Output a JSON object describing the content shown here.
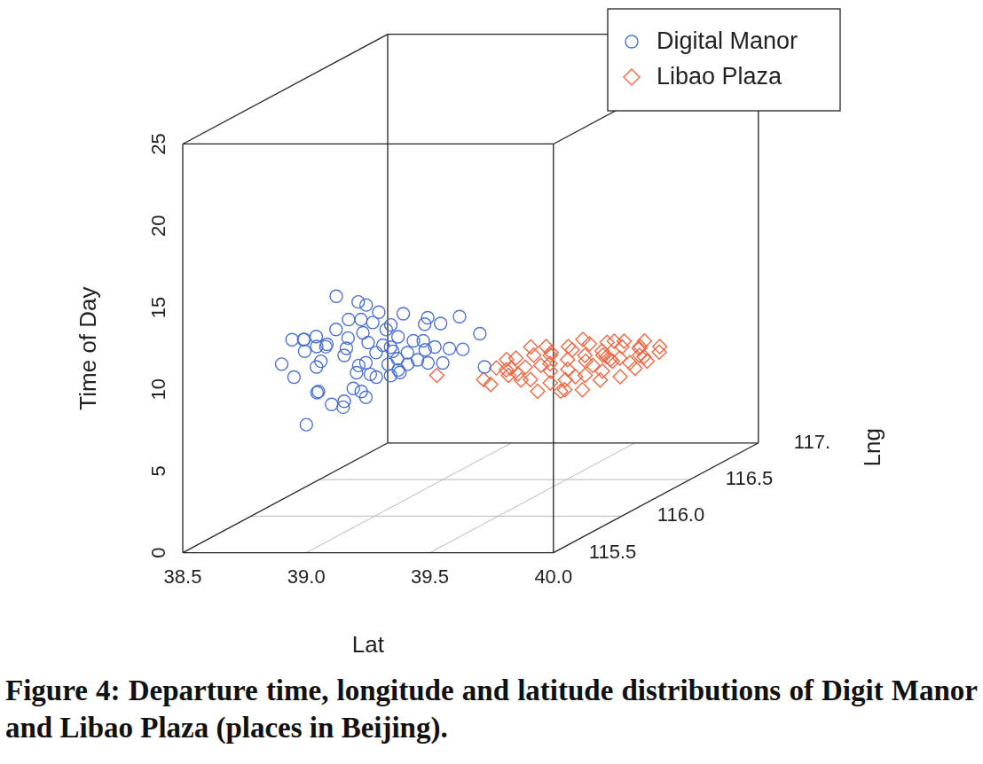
{
  "chart_data": {
    "type": "scatter3d",
    "caption": "Figure 4: Departure time, longitude and latitude distributions of Digit Manor and Libao Plaza (places in Beijing).",
    "x_label": "Lat",
    "y_label": "Lng",
    "z_label": "Time of Day",
    "xlim": [
      38.5,
      40.0
    ],
    "xticks": [
      38.5,
      {
        "value": 39,
        "label": "39.0"
      },
      39.5,
      {
        "value": 40,
        "label": "40.0"
      }
    ],
    "ylim": [
      115.5,
      117
    ],
    "yticks": [
      115.5,
      {
        "value": 116,
        "label": "116.0"
      },
      116.5,
      {
        "value": 117,
        "label": "117."
      }
    ],
    "zlim": [
      0,
      25
    ],
    "zticks": [
      0,
      5,
      10,
      15,
      20,
      25
    ],
    "grid": true,
    "legend": "top-right",
    "series": [
      {
        "name": "Digital Manor",
        "color": "#4a72d6",
        "marker": "circle",
        "x": [
          38.69,
          38.71,
          38.77,
          38.79,
          38.75,
          38.74,
          38.81,
          38.82,
          38.85,
          38.8,
          38.79,
          38.87,
          38.9,
          38.88,
          38.91,
          38.91,
          38.93,
          38.95,
          38.97,
          38.96,
          38.98,
          38.99,
          39.02,
          38.95,
          38.91,
          39.0,
          39.01,
          39.0,
          39.03,
          39.05,
          39.04,
          39.05,
          39.02,
          39.07,
          39.08,
          39.1,
          39.11,
          39.12,
          39.06,
          39.04,
          39.14,
          39.16,
          39.15,
          39.17,
          39.19,
          39.2,
          39.14,
          39.12,
          39.21,
          39.23,
          39.24,
          39.26,
          39.27,
          39.28,
          39.3,
          39.31,
          39.32,
          39.26,
          39.38,
          39.39,
          39.41,
          39.47,
          39.5,
          38.86,
          38.84,
          38.83,
          38.98,
          39.11,
          39.18
        ],
        "y": [
          115.88,
          115.92,
          115.9,
          115.86,
          115.94,
          115.88,
          115.92,
          115.9,
          115.86,
          115.94,
          115.88,
          115.92,
          115.9,
          115.86,
          115.94,
          115.88,
          115.92,
          115.9,
          115.86,
          115.94,
          115.88,
          115.92,
          115.9,
          115.86,
          115.94,
          115.88,
          115.92,
          115.9,
          115.86,
          115.94,
          115.88,
          115.92,
          115.9,
          115.86,
          115.94,
          115.88,
          115.92,
          115.9,
          115.86,
          115.94,
          115.88,
          115.92,
          115.9,
          115.86,
          115.94,
          115.88,
          115.92,
          115.9,
          115.86,
          115.94,
          115.88,
          115.92,
          115.9,
          115.86,
          115.94,
          115.88,
          115.92,
          115.9,
          115.86,
          115.94,
          115.88,
          115.92,
          115.9,
          115.86,
          115.94,
          115.88,
          115.92,
          115.9,
          115.86
        ],
        "z": [
          9.83,
          11.15,
          11.26,
          11.42,
          10.36,
          9.04,
          10.73,
          9.57,
          8.25,
          7.82,
          6.13,
          7.19,
          13.9,
          10.99,
          10.1,
          11.95,
          10.62,
          12.47,
          11.52,
          9.04,
          8.35,
          7.98,
          7.72,
          7.29,
          7.29,
          13.64,
          13.27,
          12.47,
          11.84,
          12.74,
          11.15,
          10.36,
          9.83,
          12.47,
          11.68,
          10.99,
          12.05,
          10.78,
          9.3,
          8.77,
          10.62,
          12.74,
          11.42,
          10.25,
          10.99,
          9.83,
          9.3,
          9.04,
          10.62,
          10.99,
          10.1,
          9.73,
          12.58,
          12.37,
          12.05,
          10.88,
          9.73,
          10.62,
          10.88,
          10.47,
          12.74,
          11.52,
          9.57,
          10.1,
          10.78,
          11.52,
          9.57,
          9.73,
          9.41
        ]
      },
      {
        "name": "Libao Plaza",
        "color": "#f26640",
        "marker": "diamond",
        "x": [
          38.92,
          39.12,
          39.15,
          39.16,
          39.18,
          39.21,
          39.23,
          39.25,
          39.27,
          39.29,
          39.3,
          39.31,
          39.33,
          39.35,
          39.36,
          39.38,
          39.39,
          39.41,
          39.4,
          39.43,
          39.45,
          39.46,
          39.47,
          39.49,
          39.5,
          39.52,
          39.53,
          39.54,
          39.56,
          39.57,
          39.59,
          39.6,
          39.62,
          39.63,
          39.64,
          39.66,
          39.68,
          39.69,
          39.7,
          39.72,
          39.74,
          39.75,
          39.76,
          39.78,
          39.8,
          39.82,
          39.52,
          39.57,
          39.46,
          39.34,
          39.24,
          39.62,
          39.5,
          39.66,
          39.7,
          39.44,
          39.39,
          39.19,
          39.3,
          39.6,
          39.76
        ],
        "y": [
          116.6,
          116.58,
          116.62,
          116.56,
          116.64,
          116.6,
          116.58,
          116.62,
          116.56,
          116.64,
          116.6,
          116.58,
          116.62,
          116.56,
          116.64,
          116.6,
          116.58,
          116.62,
          116.56,
          116.64,
          116.6,
          116.58,
          116.62,
          116.56,
          116.64,
          116.6,
          116.58,
          116.62,
          116.56,
          116.64,
          116.6,
          116.58,
          116.62,
          116.56,
          116.64,
          116.6,
          116.58,
          116.62,
          116.56,
          116.64,
          116.6,
          116.58,
          116.62,
          116.56,
          116.64,
          116.6,
          116.58,
          116.62,
          116.56,
          116.64,
          116.6,
          116.58,
          116.62,
          116.56,
          116.64,
          116.6,
          116.58,
          116.62,
          116.56,
          116.64,
          116.6
        ],
        "z": [
          5.92,
          5.76,
          6.29,
          5.55,
          6.71,
          5.92,
          6.45,
          5.55,
          6.18,
          6.98,
          7.66,
          5.76,
          6.45,
          5.13,
          7.14,
          6.18,
          5.55,
          4.86,
          6.82,
          7.51,
          6.29,
          6.98,
          5.76,
          7.66,
          6.61,
          5.92,
          7.24,
          6.45,
          8.03,
          6.98,
          6.18,
          7.51,
          6.71,
          7.24,
          5.66,
          6.98,
          7.77,
          6.61,
          8.19,
          7.51,
          7.14,
          7.66,
          6.71,
          7.24,
          7.51,
          7.35,
          5.13,
          5.55,
          5.23,
          7.51,
          6.98,
          8.03,
          8.03,
          8.19,
          6.18,
          5.66,
          7.24,
          6.18,
          6.61,
          6.71,
          8.03
        ]
      }
    ]
  }
}
